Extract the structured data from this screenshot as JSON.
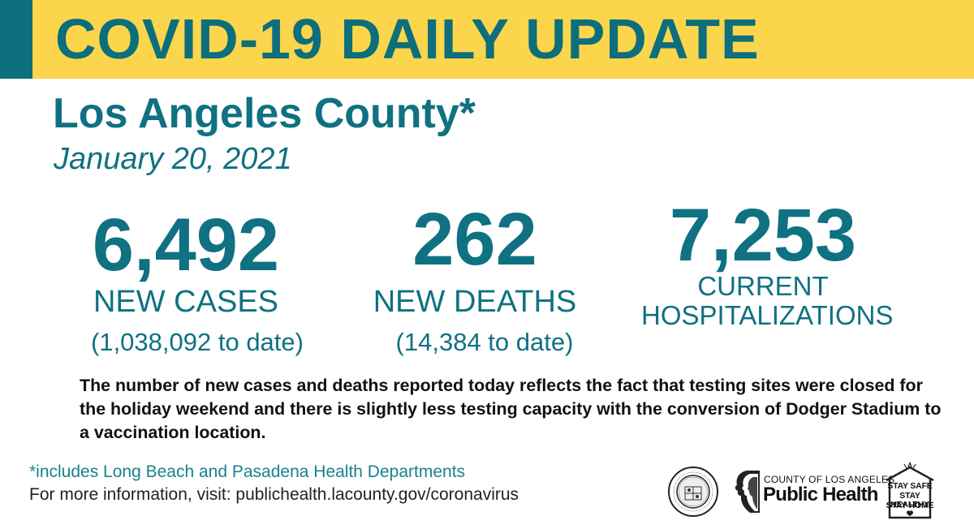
{
  "header": {
    "title_bold": "COVID-19",
    "title_rest": " DAILY UPDATE"
  },
  "location": "Los Angeles County*",
  "date": "January 20, 2021",
  "stats": {
    "cases": {
      "number": "6,492",
      "label": "NEW CASES",
      "sub": "(1,038,092 to date)"
    },
    "deaths": {
      "number": "262",
      "label": "NEW DEATHS",
      "sub": "(14,384 to date)"
    },
    "hospitalizations": {
      "number": "7,253",
      "label_line1": "CURRENT",
      "label_line2": "HOSPITALIZATIONS"
    }
  },
  "note": "The number of new cases and deaths reported today reflects the fact that testing sites were closed for the holiday weekend and there is slightly less testing capacity with the conversion of Dodger Stadium to a vaccination location.",
  "footnote": "*includes Long Beach and Pasadena Health Departments",
  "more_info": "For more information, visit: publichealth.lacounty.gov/coronavirus",
  "logos": {
    "seal_text": "COUNTY OF LOS ANGELES",
    "public_health_top": "COUNTY OF LOS ANGELES",
    "public_health_main": "Public Health",
    "stay_lines": [
      "STAY SAFE",
      "STAY HEALTHY",
      "STAY HOME"
    ]
  },
  "colors": {
    "banner": "#fbd54c",
    "teal": "#0f7182",
    "accent": "#0d6e7c"
  }
}
